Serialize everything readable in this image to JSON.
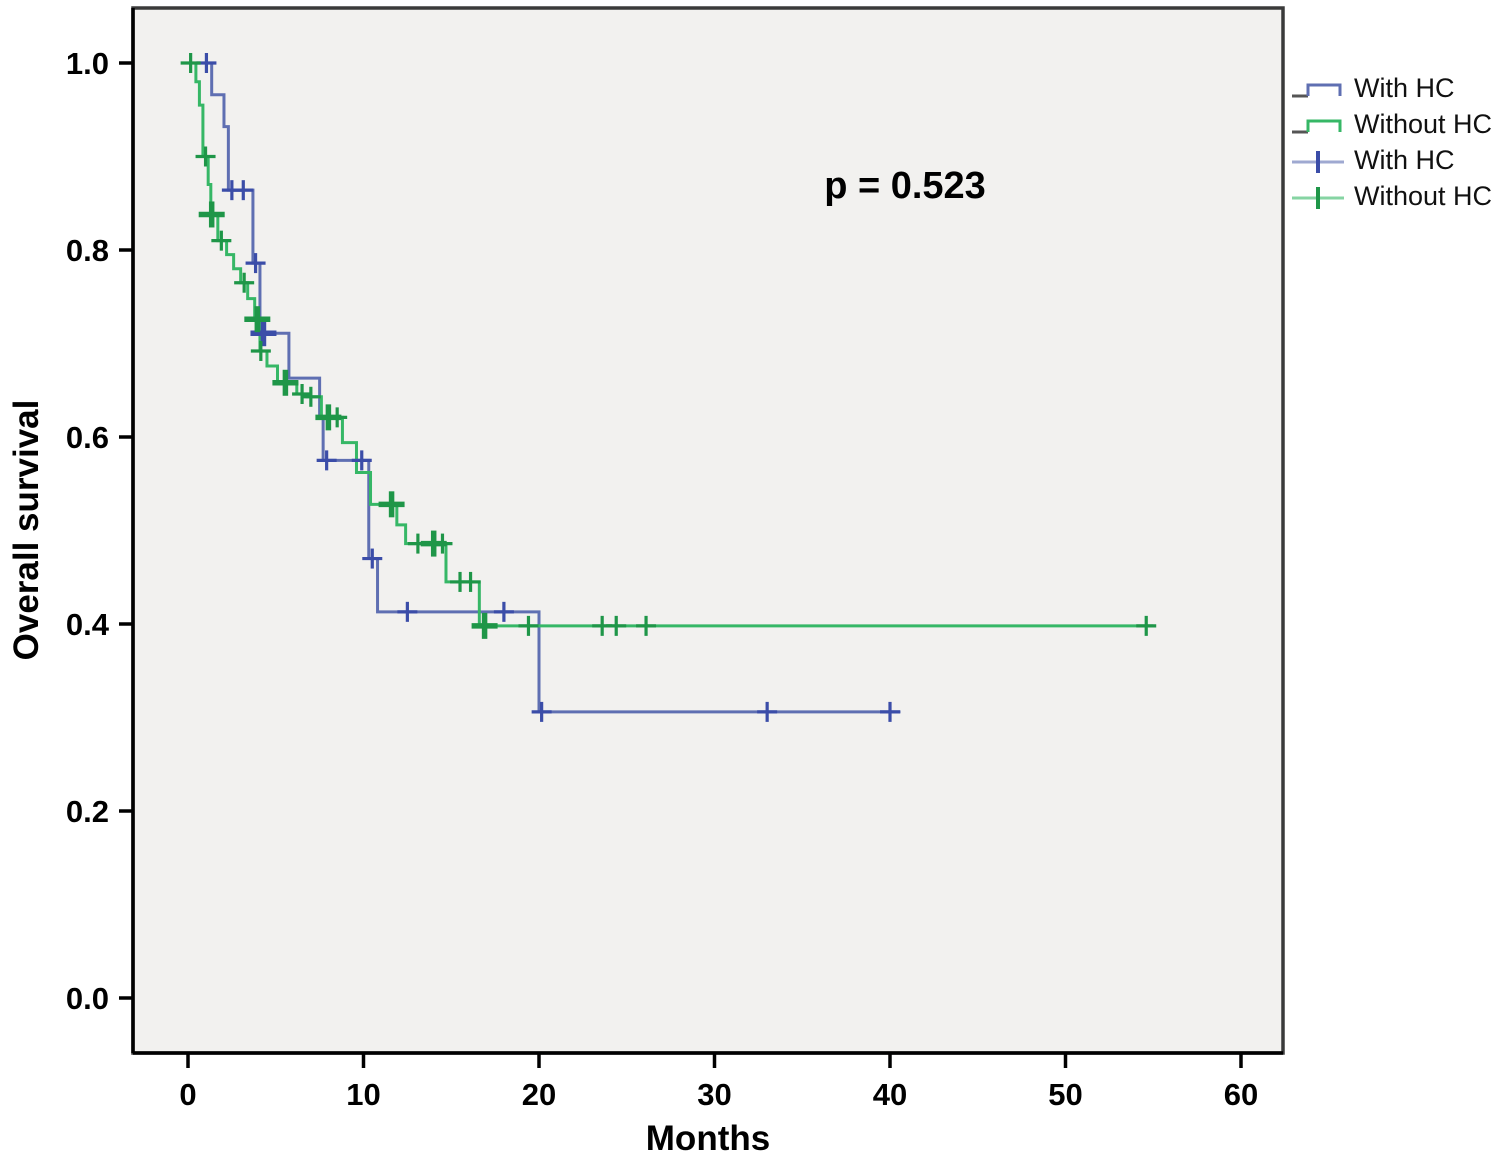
{
  "figure": {
    "xlabel": "Months",
    "ylabel": "Overall survival",
    "annotation": "p = 0.523"
  },
  "chart_data": {
    "type": "line",
    "subtype": "kaplan-meier-step",
    "title": "",
    "xlabel": "Months",
    "ylabel": "Overall survival",
    "annotation": "p = 0.523",
    "x_ticks": [
      0,
      10,
      20,
      30,
      40,
      50,
      60
    ],
    "y_ticks": [
      "0.0",
      "0.2",
      "0.4",
      "0.6",
      "0.8",
      "1.0"
    ],
    "xlim": [
      -3.2,
      62.4
    ],
    "ylim": [
      -0.06,
      1.06
    ],
    "grid": false,
    "legend_position": "outside-top-right",
    "plot_bg": "#f2f1ef",
    "frame_color": "#3a3a3a",
    "series": [
      {
        "name": "With HC",
        "color": "#5f6fb2",
        "censor_color": "#3b4da8",
        "steps": [
          [
            0,
            1.0
          ],
          [
            1.35,
            0.966
          ],
          [
            2.05,
            0.932
          ],
          [
            2.3,
            0.864
          ],
          [
            3.7,
            0.786
          ],
          [
            4.1,
            0.711
          ],
          [
            5.75,
            0.663
          ],
          [
            7.5,
            0.62
          ],
          [
            7.7,
            0.575
          ],
          [
            10.3,
            0.47
          ],
          [
            10.8,
            0.413
          ],
          [
            20.0,
            0.306
          ]
        ],
        "end_month": 40.6,
        "censors": [
          {
            "m": 1.05,
            "v": 1.0,
            "big": false
          },
          {
            "m": 2.5,
            "v": 0.864,
            "big": false
          },
          {
            "m": 3.15,
            "v": 0.864,
            "big": false
          },
          {
            "m": 3.85,
            "v": 0.786,
            "big": false
          },
          {
            "m": 4.3,
            "v": 0.711,
            "big": true
          },
          {
            "m": 7.9,
            "v": 0.575,
            "big": false
          },
          {
            "m": 9.9,
            "v": 0.575,
            "big": false
          },
          {
            "m": 10.5,
            "v": 0.47,
            "big": false
          },
          {
            "m": 12.5,
            "v": 0.413,
            "big": false
          },
          {
            "m": 18.0,
            "v": 0.413,
            "big": false
          },
          {
            "m": 20.15,
            "v": 0.306,
            "big": false
          },
          {
            "m": 33.0,
            "v": 0.306,
            "big": false
          },
          {
            "m": 40.0,
            "v": 0.306,
            "big": false
          }
        ]
      },
      {
        "name": "Without HC",
        "color": "#36b766",
        "censor_color": "#1f9648",
        "steps": [
          [
            0,
            1.0
          ],
          [
            0.45,
            0.98
          ],
          [
            0.65,
            0.955
          ],
          [
            0.85,
            0.9
          ],
          [
            1.15,
            0.87
          ],
          [
            1.3,
            0.838
          ],
          [
            1.7,
            0.81
          ],
          [
            2.2,
            0.795
          ],
          [
            2.6,
            0.78
          ],
          [
            3.0,
            0.765
          ],
          [
            3.4,
            0.748
          ],
          [
            3.8,
            0.726
          ],
          [
            4.1,
            0.692
          ],
          [
            4.5,
            0.676
          ],
          [
            5.1,
            0.658
          ],
          [
            6.2,
            0.646
          ],
          [
            6.8,
            0.643
          ],
          [
            7.6,
            0.621
          ],
          [
            8.8,
            0.594
          ],
          [
            9.6,
            0.562
          ],
          [
            10.4,
            0.528
          ],
          [
            11.9,
            0.506
          ],
          [
            12.4,
            0.486
          ],
          [
            14.7,
            0.445
          ],
          [
            16.6,
            0.398
          ]
        ],
        "end_month": 55.0,
        "censors": [
          {
            "m": 0.15,
            "v": 1.0,
            "big": false
          },
          {
            "m": 1.0,
            "v": 0.9,
            "big": false
          },
          {
            "m": 1.35,
            "v": 0.838,
            "big": true
          },
          {
            "m": 1.9,
            "v": 0.81,
            "big": false
          },
          {
            "m": 3.2,
            "v": 0.765,
            "big": false
          },
          {
            "m": 3.95,
            "v": 0.726,
            "big": true
          },
          {
            "m": 4.15,
            "v": 0.692,
            "big": false
          },
          {
            "m": 5.55,
            "v": 0.658,
            "big": true
          },
          {
            "m": 6.5,
            "v": 0.646,
            "big": false
          },
          {
            "m": 7.0,
            "v": 0.643,
            "big": false
          },
          {
            "m": 8.0,
            "v": 0.621,
            "big": true
          },
          {
            "m": 8.5,
            "v": 0.621,
            "big": false
          },
          {
            "m": 11.6,
            "v": 0.528,
            "big": true
          },
          {
            "m": 13.1,
            "v": 0.486,
            "big": false
          },
          {
            "m": 14.0,
            "v": 0.486,
            "big": true
          },
          {
            "m": 14.5,
            "v": 0.486,
            "big": false
          },
          {
            "m": 15.5,
            "v": 0.445,
            "big": false
          },
          {
            "m": 16.1,
            "v": 0.445,
            "big": false
          },
          {
            "m": 16.9,
            "v": 0.398,
            "big": true
          },
          {
            "m": 19.4,
            "v": 0.398,
            "big": false
          },
          {
            "m": 23.6,
            "v": 0.398,
            "big": false
          },
          {
            "m": 24.4,
            "v": 0.398,
            "big": false
          },
          {
            "m": 26.1,
            "v": 0.398,
            "big": false
          },
          {
            "m": 54.6,
            "v": 0.398,
            "big": false
          }
        ]
      }
    ],
    "legend": [
      {
        "label": "With HC",
        "glyph": "step-line",
        "series": 0
      },
      {
        "label": "Without HC",
        "glyph": "step-line",
        "series": 1
      },
      {
        "label": "With HC",
        "glyph": "censor-plus",
        "series": 0
      },
      {
        "label": "Without HC",
        "glyph": "censor-plus",
        "series": 1
      }
    ]
  }
}
